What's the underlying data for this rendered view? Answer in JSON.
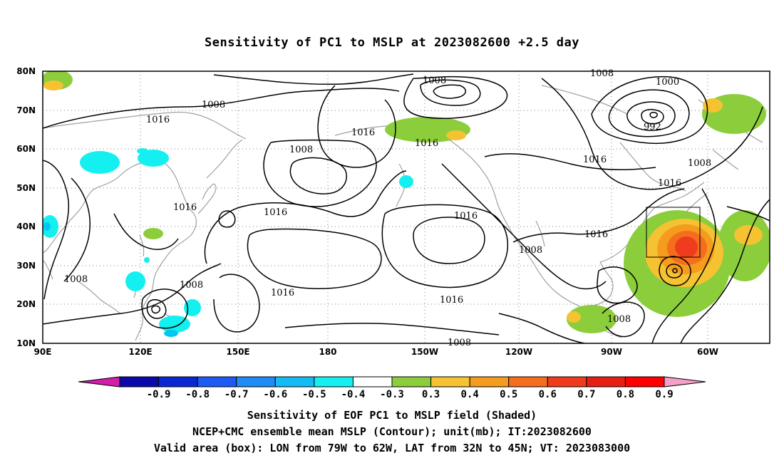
{
  "title": "Sensitivity of PC1 to MSLP at 2023082600 +2.5 day",
  "map": {
    "lat_ticks": [
      "80N",
      "70N",
      "60N",
      "50N",
      "40N",
      "30N",
      "20N",
      "10N"
    ],
    "lon_ticks": [
      "90E",
      "120E",
      "150E",
      "180",
      "150W",
      "120W",
      "90W",
      "60W"
    ],
    "extent": {
      "lon_west": "90E",
      "lon_east": "40W",
      "lat_south": "10N",
      "lat_north": "80N"
    },
    "grid": true,
    "contour_labels": [
      "1008",
      "1016",
      "1008",
      "1008",
      "1000",
      "992",
      "1016",
      "1016",
      "1016",
      "1016",
      "1008",
      "1016",
      "1016",
      "1016",
      "1016",
      "1008",
      "1008",
      "1008",
      "1016",
      "1008",
      "1008",
      "1008"
    ],
    "valid_box": {
      "lon_west": "79W",
      "lon_east": "62W",
      "lat_south": "32N",
      "lat_north": "45N"
    },
    "colors": {
      "contour": "#000000",
      "coastline": "#a0a0a0",
      "gridline": "#7f7f7f",
      "positive_shading": [
        "#8ccd3c",
        "#f5c232",
        "#f59b1e",
        "#f56e1e",
        "#f03c1e",
        "#e61e14"
      ],
      "negative_shading": [
        "#14dcf0",
        "#00c8f5"
      ]
    }
  },
  "colorbar": {
    "labels": [
      "-0.9",
      "-0.8",
      "-0.7",
      "-0.6",
      "-0.5",
      "-0.4",
      "-0.3",
      "0.3",
      "0.4",
      "0.5",
      "0.6",
      "0.7",
      "0.8",
      "0.9"
    ],
    "colors": [
      "#d21eaa",
      "#0a0aaa",
      "#0a28d2",
      "#1e5af5",
      "#1e8cf5",
      "#14bcf5",
      "#14f0f0",
      "#ffffff",
      "#8ccd3c",
      "#f5c232",
      "#f59b1e",
      "#f56e1e",
      "#f03c1e",
      "#e61e14",
      "#ff0000",
      "#f5a0c8"
    ]
  },
  "captions": [
    "Sensitivity of EOF PC1 to MSLP field (Shaded)",
    "NCEP+CMC ensemble mean MSLP (Contour); unit(mb); IT:2023082600",
    "Valid area (box): LON from 79W to 62W, LAT from 32N to 45N; VT: 2023083000"
  ]
}
